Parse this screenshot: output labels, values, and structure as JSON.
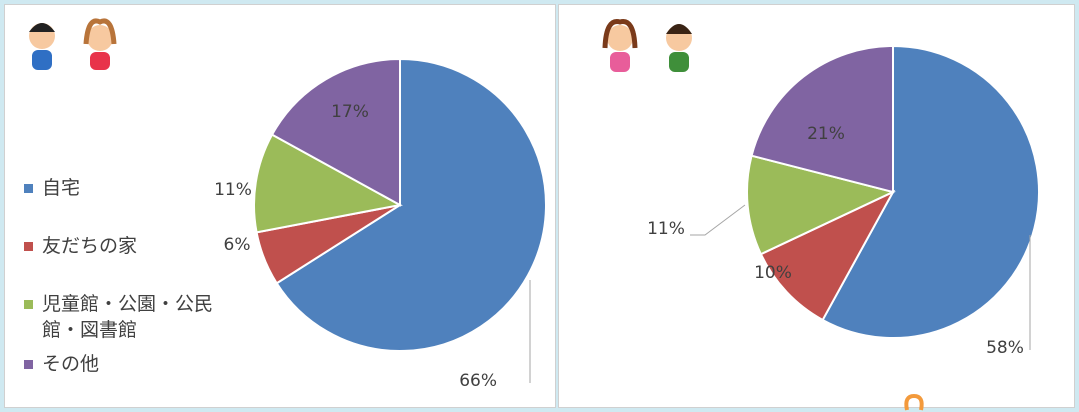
{
  "chart_data": [
    {
      "type": "pie",
      "categories": [
        "自宅",
        "友だちの家",
        "児童館・公園・公民館・図書館",
        "その他"
      ],
      "values": [
        66,
        6,
        11,
        17
      ],
      "value_labels": [
        "66%",
        "6%",
        "11%",
        "17%"
      ],
      "colors": [
        "#4f81bd",
        "#c0504d",
        "#9bbb59",
        "#8064a2"
      ],
      "legend": "left"
    },
    {
      "type": "pie",
      "categories": [
        "自宅",
        "友だちの家",
        "児童館・公園・公民館・図書館",
        "その他"
      ],
      "values": [
        58,
        10,
        11,
        21
      ],
      "value_labels": [
        "58%",
        "10%",
        "11%",
        "21%"
      ],
      "colors": [
        "#4f81bd",
        "#c0504d",
        "#9bbb59",
        "#8064a2"
      ]
    }
  ]
}
